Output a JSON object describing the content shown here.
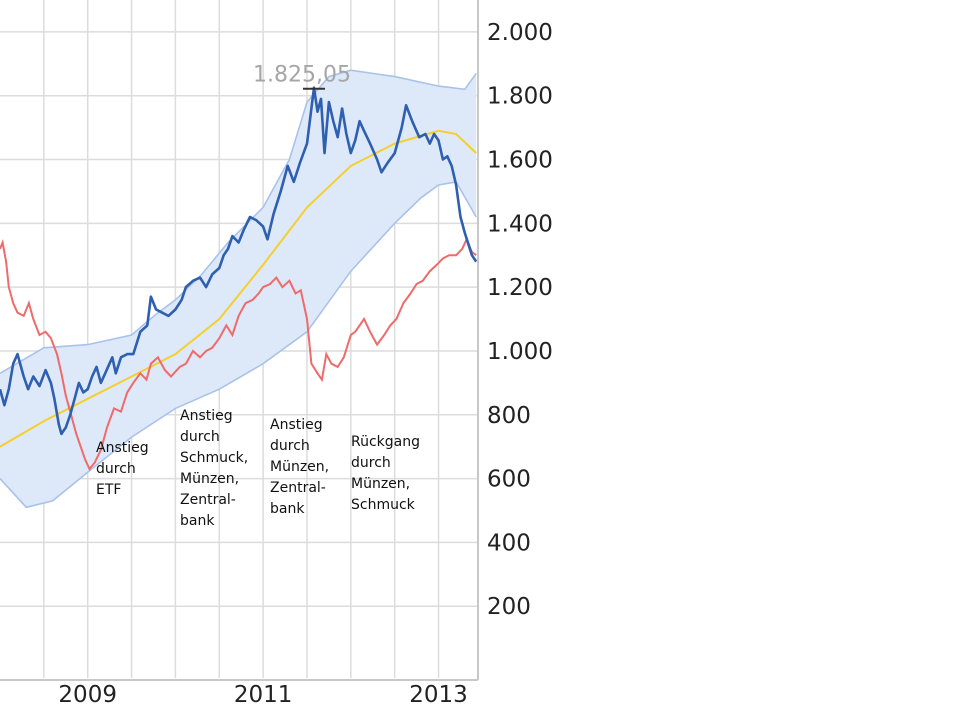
{
  "chart_data": {
    "type": "line",
    "title": "",
    "xlabel": "",
    "ylabel": "",
    "xlim": [
      2008.0,
      2013.45
    ],
    "ylim": [
      0,
      2100
    ],
    "x_ticks": [
      2009,
      2011,
      2013
    ],
    "x_tick_labels": [
      "2009",
      "2011",
      "2013"
    ],
    "y_ticks": [
      200,
      400,
      600,
      800,
      1000,
      1200,
      1400,
      1600,
      1800,
      2000
    ],
    "y_tick_labels": [
      "200",
      "400",
      "600",
      "800",
      "1.000",
      "1.200",
      "1.400",
      "1.600",
      "1.800",
      "2.000"
    ],
    "grid": true,
    "peak": {
      "x": 2011.58,
      "y": 1825.05,
      "label": "1.825,05"
    },
    "colors": {
      "price": "#2f5fb0",
      "comparison": "#ef6a6a",
      "moving_average": "#f5cf2e",
      "band": "#dde9f8",
      "band_edge": "#a9c2ea",
      "grid": "#dcdcdc"
    },
    "series": [
      {
        "key": "price",
        "points": [
          [
            2008.0,
            880
          ],
          [
            2008.05,
            830
          ],
          [
            2008.1,
            880
          ],
          [
            2008.15,
            960
          ],
          [
            2008.2,
            990
          ],
          [
            2008.27,
            920
          ],
          [
            2008.32,
            880
          ],
          [
            2008.38,
            920
          ],
          [
            2008.45,
            890
          ],
          [
            2008.52,
            940
          ],
          [
            2008.58,
            900
          ],
          [
            2008.62,
            850
          ],
          [
            2008.67,
            770
          ],
          [
            2008.7,
            740
          ],
          [
            2008.75,
            760
          ],
          [
            2008.8,
            800
          ],
          [
            2008.85,
            850
          ],
          [
            2008.9,
            900
          ],
          [
            2008.95,
            870
          ],
          [
            2009.0,
            880
          ],
          [
            2009.05,
            920
          ],
          [
            2009.1,
            950
          ],
          [
            2009.15,
            900
          ],
          [
            2009.2,
            930
          ],
          [
            2009.28,
            980
          ],
          [
            2009.32,
            930
          ],
          [
            2009.38,
            980
          ],
          [
            2009.45,
            990
          ],
          [
            2009.52,
            990
          ],
          [
            2009.6,
            1060
          ],
          [
            2009.68,
            1080
          ],
          [
            2009.72,
            1170
          ],
          [
            2009.78,
            1130
          ],
          [
            2009.85,
            1120
          ],
          [
            2009.92,
            1110
          ],
          [
            2010.0,
            1130
          ],
          [
            2010.07,
            1160
          ],
          [
            2010.12,
            1200
          ],
          [
            2010.2,
            1220
          ],
          [
            2010.28,
            1230
          ],
          [
            2010.35,
            1200
          ],
          [
            2010.42,
            1240
          ],
          [
            2010.5,
            1260
          ],
          [
            2010.55,
            1300
          ],
          [
            2010.6,
            1320
          ],
          [
            2010.65,
            1360
          ],
          [
            2010.72,
            1340
          ],
          [
            2010.78,
            1380
          ],
          [
            2010.85,
            1420
          ],
          [
            2010.92,
            1410
          ],
          [
            2011.0,
            1390
          ],
          [
            2011.05,
            1350
          ],
          [
            2011.12,
            1430
          ],
          [
            2011.2,
            1500
          ],
          [
            2011.28,
            1580
          ],
          [
            2011.35,
            1530
          ],
          [
            2011.42,
            1590
          ],
          [
            2011.5,
            1650
          ],
          [
            2011.58,
            1825
          ],
          [
            2011.62,
            1750
          ],
          [
            2011.66,
            1790
          ],
          [
            2011.7,
            1620
          ],
          [
            2011.75,
            1780
          ],
          [
            2011.8,
            1720
          ],
          [
            2011.85,
            1670
          ],
          [
            2011.9,
            1760
          ],
          [
            2011.95,
            1680
          ],
          [
            2012.0,
            1620
          ],
          [
            2012.05,
            1660
          ],
          [
            2012.1,
            1720
          ],
          [
            2012.15,
            1690
          ],
          [
            2012.22,
            1650
          ],
          [
            2012.3,
            1600
          ],
          [
            2012.35,
            1560
          ],
          [
            2012.42,
            1590
          ],
          [
            2012.5,
            1620
          ],
          [
            2012.58,
            1700
          ],
          [
            2012.63,
            1770
          ],
          [
            2012.7,
            1720
          ],
          [
            2012.78,
            1670
          ],
          [
            2012.85,
            1680
          ],
          [
            2012.9,
            1650
          ],
          [
            2012.95,
            1680
          ],
          [
            2013.0,
            1660
          ],
          [
            2013.05,
            1600
          ],
          [
            2013.1,
            1610
          ],
          [
            2013.15,
            1580
          ],
          [
            2013.2,
            1520
          ],
          [
            2013.25,
            1420
          ],
          [
            2013.3,
            1370
          ],
          [
            2013.38,
            1300
          ],
          [
            2013.43,
            1280
          ]
        ]
      },
      {
        "key": "comparison",
        "points": [
          [
            2008.0,
            1320
          ],
          [
            2008.03,
            1340
          ],
          [
            2008.07,
            1280
          ],
          [
            2008.1,
            1200
          ],
          [
            2008.15,
            1150
          ],
          [
            2008.2,
            1120
          ],
          [
            2008.27,
            1110
          ],
          [
            2008.33,
            1150
          ],
          [
            2008.38,
            1100
          ],
          [
            2008.45,
            1050
          ],
          [
            2008.52,
            1060
          ],
          [
            2008.58,
            1040
          ],
          [
            2008.65,
            990
          ],
          [
            2008.7,
            930
          ],
          [
            2008.75,
            860
          ],
          [
            2008.8,
            810
          ],
          [
            2008.87,
            740
          ],
          [
            2008.92,
            700
          ],
          [
            2008.97,
            660
          ],
          [
            2009.02,
            630
          ],
          [
            2009.08,
            650
          ],
          [
            2009.15,
            690
          ],
          [
            2009.22,
            760
          ],
          [
            2009.3,
            820
          ],
          [
            2009.38,
            810
          ],
          [
            2009.45,
            870
          ],
          [
            2009.52,
            900
          ],
          [
            2009.6,
            930
          ],
          [
            2009.67,
            910
          ],
          [
            2009.72,
            960
          ],
          [
            2009.8,
            980
          ],
          [
            2009.88,
            940
          ],
          [
            2009.95,
            920
          ],
          [
            2010.05,
            950
          ],
          [
            2010.12,
            960
          ],
          [
            2010.2,
            1000
          ],
          [
            2010.28,
            980
          ],
          [
            2010.35,
            1000
          ],
          [
            2010.42,
            1010
          ],
          [
            2010.5,
            1040
          ],
          [
            2010.58,
            1080
          ],
          [
            2010.65,
            1050
          ],
          [
            2010.72,
            1110
          ],
          [
            2010.8,
            1150
          ],
          [
            2010.88,
            1160
          ],
          [
            2010.95,
            1180
          ],
          [
            2011.0,
            1200
          ],
          [
            2011.08,
            1210
          ],
          [
            2011.15,
            1230
          ],
          [
            2011.22,
            1200
          ],
          [
            2011.3,
            1220
          ],
          [
            2011.37,
            1180
          ],
          [
            2011.43,
            1190
          ],
          [
            2011.5,
            1100
          ],
          [
            2011.55,
            960
          ],
          [
            2011.62,
            930
          ],
          [
            2011.67,
            910
          ],
          [
            2011.72,
            990
          ],
          [
            2011.78,
            960
          ],
          [
            2011.85,
            950
          ],
          [
            2011.92,
            980
          ],
          [
            2012.0,
            1050
          ],
          [
            2012.05,
            1060
          ],
          [
            2012.1,
            1080
          ],
          [
            2012.15,
            1100
          ],
          [
            2012.22,
            1060
          ],
          [
            2012.3,
            1020
          ],
          [
            2012.38,
            1050
          ],
          [
            2012.45,
            1080
          ],
          [
            2012.52,
            1100
          ],
          [
            2012.6,
            1150
          ],
          [
            2012.68,
            1180
          ],
          [
            2012.75,
            1210
          ],
          [
            2012.82,
            1220
          ],
          [
            2012.9,
            1250
          ],
          [
            2012.98,
            1270
          ],
          [
            2013.05,
            1290
          ],
          [
            2013.12,
            1300
          ],
          [
            2013.2,
            1300
          ],
          [
            2013.27,
            1320
          ],
          [
            2013.32,
            1350
          ],
          [
            2013.38,
            1310
          ],
          [
            2013.43,
            1300
          ]
        ]
      },
      {
        "key": "moving_average",
        "points": [
          [
            2008.0,
            700
          ],
          [
            2008.5,
            780
          ],
          [
            2009.0,
            850
          ],
          [
            2009.5,
            920
          ],
          [
            2010.0,
            990
          ],
          [
            2010.5,
            1100
          ],
          [
            2011.0,
            1270
          ],
          [
            2011.5,
            1450
          ],
          [
            2012.0,
            1580
          ],
          [
            2012.5,
            1650
          ],
          [
            2013.0,
            1690
          ],
          [
            2013.2,
            1680
          ],
          [
            2013.43,
            1620
          ]
        ]
      },
      {
        "key": "band_upper",
        "points": [
          [
            2008.0,
            930
          ],
          [
            2008.5,
            1010
          ],
          [
            2009.0,
            1020
          ],
          [
            2009.5,
            1050
          ],
          [
            2009.8,
            1120
          ],
          [
            2010.0,
            1160
          ],
          [
            2010.3,
            1240
          ],
          [
            2010.6,
            1340
          ],
          [
            2011.0,
            1450
          ],
          [
            2011.3,
            1600
          ],
          [
            2011.5,
            1780
          ],
          [
            2011.75,
            1860
          ],
          [
            2012.0,
            1880
          ],
          [
            2012.5,
            1860
          ],
          [
            2013.0,
            1830
          ],
          [
            2013.3,
            1820
          ],
          [
            2013.43,
            1870
          ]
        ]
      },
      {
        "key": "band_lower",
        "points": [
          [
            2008.0,
            600
          ],
          [
            2008.3,
            510
          ],
          [
            2008.6,
            530
          ],
          [
            2009.0,
            620
          ],
          [
            2009.5,
            730
          ],
          [
            2010.0,
            820
          ],
          [
            2010.5,
            880
          ],
          [
            2011.0,
            960
          ],
          [
            2011.5,
            1060
          ],
          [
            2012.0,
            1250
          ],
          [
            2012.5,
            1400
          ],
          [
            2012.8,
            1480
          ],
          [
            2013.0,
            1520
          ],
          [
            2013.2,
            1530
          ],
          [
            2013.43,
            1420
          ]
        ]
      }
    ],
    "annotations": [
      {
        "x": 2009.12,
        "lines": [
          "Anstieg",
          "durch",
          "ETF"
        ]
      },
      {
        "x": 2010.07,
        "lines": [
          "Anstieg",
          "durch",
          "Schmuck,",
          "Münzen,",
          "Zentral-",
          "bank"
        ]
      },
      {
        "x": 2011.1,
        "lines": [
          "Anstieg",
          "durch",
          "Münzen,",
          "Zentral-",
          "bank"
        ]
      },
      {
        "x": 2012.03,
        "lines": [
          "Rückgang",
          "durch",
          "Münzen,",
          "Schmuck"
        ]
      }
    ]
  }
}
